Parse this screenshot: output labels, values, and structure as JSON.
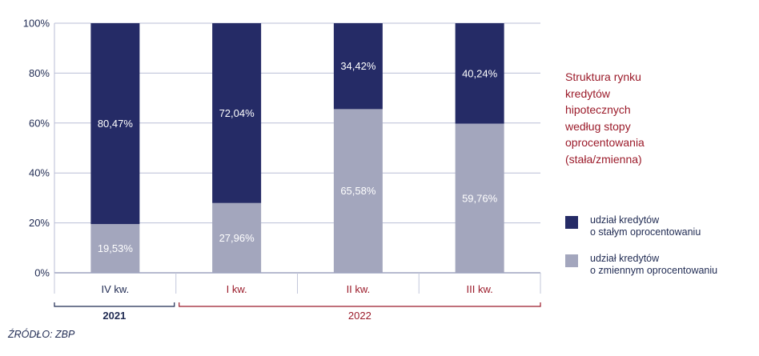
{
  "chart_data": {
    "type": "bar",
    "stacked": true,
    "categories": [
      "IV kw.",
      "I kw.",
      "II kw.",
      "III kw."
    ],
    "category_groups": [
      {
        "label": "2021",
        "categories": [
          "IV kw."
        ]
      },
      {
        "label": "2022",
        "categories": [
          "I kw.",
          "II kw.",
          "III kw."
        ]
      }
    ],
    "series": [
      {
        "name": "udział kredytów o zmiennym oprocentowaniu",
        "color": "#a3a6bd",
        "values": [
          19.53,
          27.96,
          65.58,
          59.76
        ],
        "labels": [
          "19,53%",
          "27,96%",
          "65,58%",
          "59,76%"
        ]
      },
      {
        "name": "udział kredytów o stałym oprocentowaniu",
        "color": "#252b66",
        "values": [
          80.47,
          72.04,
          34.42,
          40.24
        ],
        "labels": [
          "80,47%",
          "72,04%",
          "34,42%",
          "40,24%"
        ]
      }
    ],
    "ylim": [
      0,
      100
    ],
    "yticks": [
      0,
      20,
      40,
      60,
      80,
      100
    ],
    "ytick_labels": [
      "0%",
      "20%",
      "40%",
      "60%",
      "80%",
      "100%"
    ],
    "grid": true,
    "legend_position": "right",
    "title_lines": [
      "Struktura rynku",
      "kredytów",
      "hipotecznych",
      "według stopy",
      "oprocentowania",
      "(stała/zmienna)"
    ],
    "legend": [
      {
        "lines": [
          "udział kredytów",
          "o stałym oprocentowaniu"
        ],
        "color": "#252b66"
      },
      {
        "lines": [
          "udział kredytów",
          "o zmiennym oprocentowaniu"
        ],
        "color": "#a3a6bd"
      }
    ],
    "source": "ŹRÓDŁO: ZBP"
  },
  "colors": {
    "axis_text": "#1f2a52",
    "category_2022": "#9b1b2a",
    "grid": "#b9bed6"
  }
}
